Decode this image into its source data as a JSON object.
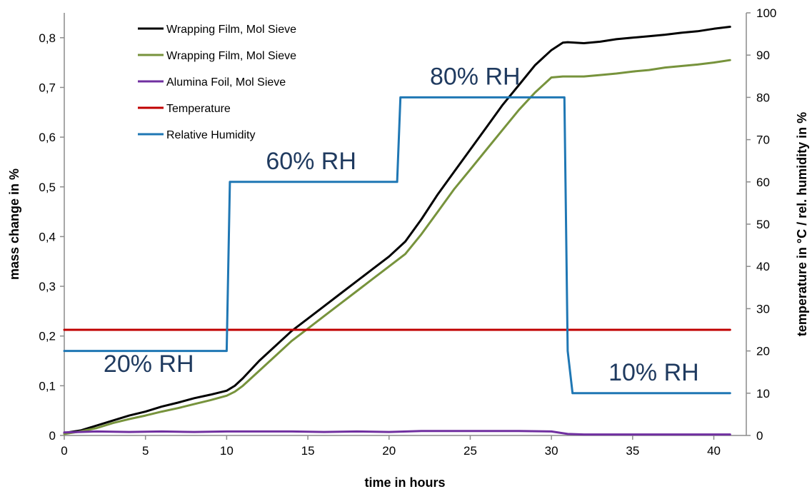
{
  "chart_data": {
    "type": "line",
    "xlabel": "time in hours",
    "ylabel": "mass change in %",
    "y2label": "temperature in °C / rel. humidity in %",
    "xlim": [
      0,
      42
    ],
    "ylim": [
      0,
      0.85
    ],
    "y2lim": [
      0,
      100
    ],
    "xticks": [
      "0",
      "5",
      "10",
      "15",
      "20",
      "25",
      "30",
      "35",
      "40"
    ],
    "yticks": [
      "0",
      "0,1",
      "0,2",
      "0,3",
      "0,4",
      "0,5",
      "0,6",
      "0,7",
      "0,8"
    ],
    "y2ticks": [
      "0",
      "10",
      "20",
      "30",
      "40",
      "50",
      "60",
      "70",
      "80",
      "90",
      "100"
    ],
    "grid": false,
    "legend_position": "top-left",
    "series": [
      {
        "name": "Wrapping Film, Mol Sieve",
        "axis": "left",
        "color": "#000000",
        "x": [
          0,
          1,
          2,
          3,
          4,
          5,
          6,
          7,
          8,
          9,
          10,
          10.5,
          11,
          12,
          13,
          14,
          15,
          16,
          17,
          18,
          19,
          20,
          21,
          22,
          23,
          24,
          25,
          26,
          27,
          28,
          29,
          30,
          30.7,
          31,
          32,
          33,
          34,
          35,
          36,
          37,
          38,
          39,
          40,
          41
        ],
        "y": [
          0.005,
          0.01,
          0.02,
          0.03,
          0.04,
          0.048,
          0.058,
          0.066,
          0.075,
          0.082,
          0.09,
          0.1,
          0.115,
          0.15,
          0.18,
          0.21,
          0.235,
          0.26,
          0.285,
          0.31,
          0.335,
          0.36,
          0.39,
          0.435,
          0.485,
          0.53,
          0.575,
          0.62,
          0.665,
          0.705,
          0.745,
          0.775,
          0.79,
          0.791,
          0.789,
          0.792,
          0.797,
          0.8,
          0.803,
          0.806,
          0.81,
          0.813,
          0.818,
          0.822
        ]
      },
      {
        "name": "Wrapping Film, Mol Sieve",
        "axis": "left",
        "color": "#77933c",
        "x": [
          0,
          1,
          2,
          3,
          4,
          5,
          6,
          7,
          8,
          9,
          10,
          10.5,
          11,
          12,
          13,
          14,
          15,
          16,
          17,
          18,
          19,
          20,
          21,
          22,
          23,
          24,
          25,
          26,
          27,
          28,
          29,
          30,
          30.7,
          31,
          32,
          33,
          34,
          35,
          36,
          37,
          38,
          39,
          40,
          41
        ],
        "y": [
          0.003,
          0.008,
          0.015,
          0.025,
          0.033,
          0.04,
          0.048,
          0.055,
          0.063,
          0.071,
          0.08,
          0.088,
          0.1,
          0.13,
          0.16,
          0.19,
          0.215,
          0.24,
          0.265,
          0.29,
          0.315,
          0.34,
          0.365,
          0.405,
          0.45,
          0.495,
          0.535,
          0.575,
          0.615,
          0.655,
          0.69,
          0.72,
          0.722,
          0.722,
          0.722,
          0.725,
          0.728,
          0.732,
          0.735,
          0.74,
          0.743,
          0.746,
          0.75,
          0.755
        ]
      },
      {
        "name": "Alumina Foil, Mol Sieve",
        "axis": "left",
        "color": "#7030a0",
        "x": [
          0,
          2,
          4,
          6,
          8,
          10,
          12,
          14,
          16,
          18,
          20,
          22,
          24,
          26,
          28,
          30,
          31,
          32,
          34,
          36,
          38,
          40,
          41
        ],
        "y": [
          0.006,
          0.008,
          0.007,
          0.008,
          0.007,
          0.008,
          0.008,
          0.008,
          0.007,
          0.008,
          0.007,
          0.009,
          0.009,
          0.009,
          0.009,
          0.008,
          0.003,
          0.002,
          0.002,
          0.002,
          0.002,
          0.002,
          0.002
        ]
      },
      {
        "name": "Temperature",
        "axis": "right",
        "color": "#c00000",
        "x": [
          0,
          41
        ],
        "y": [
          25,
          25
        ]
      },
      {
        "name": "Relative Humidity",
        "axis": "right",
        "color": "#1f77b4",
        "x": [
          0,
          10,
          10.2,
          20.5,
          20.7,
          30.8,
          31.0,
          31.3,
          41
        ],
        "y": [
          20,
          20,
          60,
          60,
          80,
          80,
          20,
          10,
          10
        ]
      }
    ],
    "annotations": [
      {
        "text": "20% RH",
        "x": 5.2,
        "y2": 15
      },
      {
        "text": "60% RH",
        "x": 15.2,
        "y2": 63
      },
      {
        "text": "80% RH",
        "x": 25.3,
        "y2": 83
      },
      {
        "text": "10% RH",
        "x": 36.3,
        "y2": 13
      }
    ]
  }
}
